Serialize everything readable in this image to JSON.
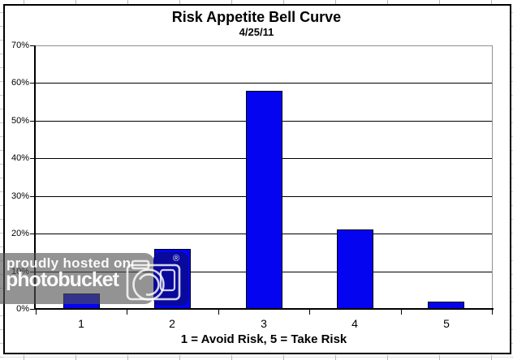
{
  "chart_data": {
    "type": "bar",
    "title": "Risk Appetite Bell Curve",
    "subtitle": "4/25/11",
    "categories": [
      "1",
      "2",
      "3",
      "4",
      "5"
    ],
    "values": [
      4,
      16,
      58,
      21,
      2
    ],
    "xlabel": "1 = Avoid Risk, 5 = Take Risk",
    "ylabel": "",
    "ylim": [
      0,
      70
    ],
    "ytick_step": 10,
    "ytick_labels": [
      "0%",
      "10%",
      "20%",
      "30%",
      "40%",
      "50%",
      "60%",
      "70%"
    ],
    "grid": true,
    "legend": "none",
    "bar_color": "#0404f0",
    "bar_border_color": "#000000",
    "gridline_color": "#000000",
    "plot_border_color": "#909090"
  },
  "watermark": {
    "line1": "proudly hosted on",
    "line2": "photobucket",
    "registered_mark": "®",
    "camera_icon": "camera-icon",
    "band_color": "#505050",
    "tile_color": "#0a0a96",
    "text_color": "#ffffff"
  }
}
